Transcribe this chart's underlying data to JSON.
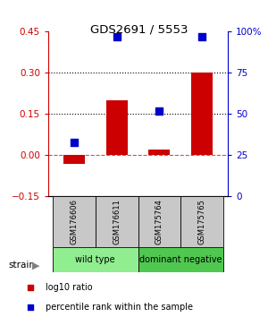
{
  "title": "GDS2691 / 5553",
  "samples": [
    "GSM176606",
    "GSM176611",
    "GSM175764",
    "GSM175765"
  ],
  "log10_ratio": [
    -0.03,
    0.2,
    0.02,
    0.3
  ],
  "percentile_rank": [
    33,
    97,
    52,
    97
  ],
  "groups": [
    {
      "label": "wild type",
      "samples": [
        0,
        1
      ],
      "color": "#90EE90"
    },
    {
      "label": "dominant negative",
      "samples": [
        2,
        3
      ],
      "color": "#50C850"
    }
  ],
  "ylim_left": [
    -0.15,
    0.45
  ],
  "ylim_right": [
    0,
    100
  ],
  "yticks_left": [
    -0.15,
    0.0,
    0.15,
    0.3,
    0.45
  ],
  "yticks_right": [
    0,
    25,
    50,
    75,
    100
  ],
  "hlines": [
    0.15,
    0.3
  ],
  "bar_color": "#CC0000",
  "dot_color": "#0000CC",
  "bar_width": 0.5,
  "dot_size": 40,
  "left_color": "#CC0000",
  "right_color": "#0000CC",
  "gray_box_color": "#C8C8C8",
  "wt_color": "#90EE90",
  "dn_color": "#50C850"
}
